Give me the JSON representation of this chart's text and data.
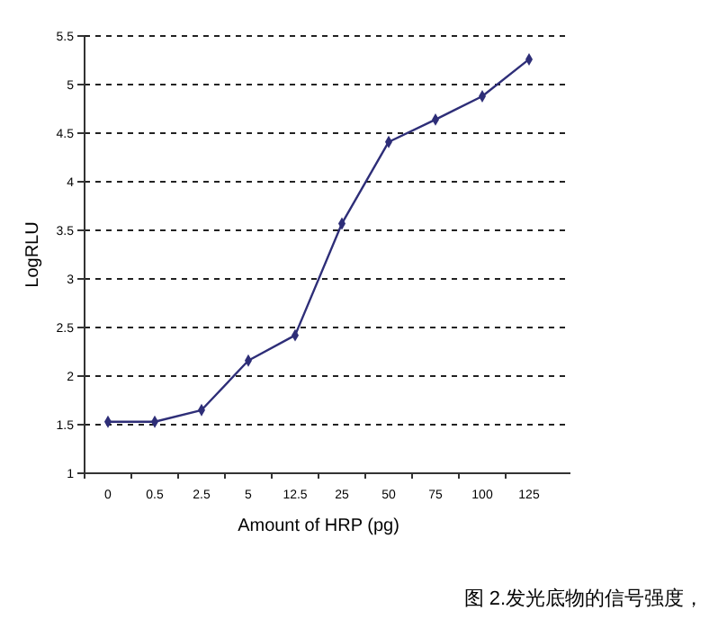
{
  "chart_data": {
    "type": "line",
    "xlabel": "Amount of HRP (pg)",
    "ylabel": "LogRLU",
    "categories": [
      "0",
      "0.5",
      "2.5",
      "5",
      "12.5",
      "25",
      "50",
      "75",
      "100",
      "125"
    ],
    "series": [
      {
        "color": "#2e2e78",
        "values": [
          1.53,
          1.53,
          1.65,
          2.16,
          2.42,
          3.57,
          4.41,
          4.64,
          4.88,
          5.26
        ]
      }
    ],
    "ylim": [
      1,
      5.5
    ],
    "yticks": [
      1,
      1.5,
      2,
      2.5,
      3,
      3.5,
      4,
      4.5,
      5,
      5.5
    ],
    "grid": "y",
    "marker": "diamond",
    "line_style": "solid",
    "annotations": [
      "图 2.发光底物的信号强度，"
    ]
  }
}
